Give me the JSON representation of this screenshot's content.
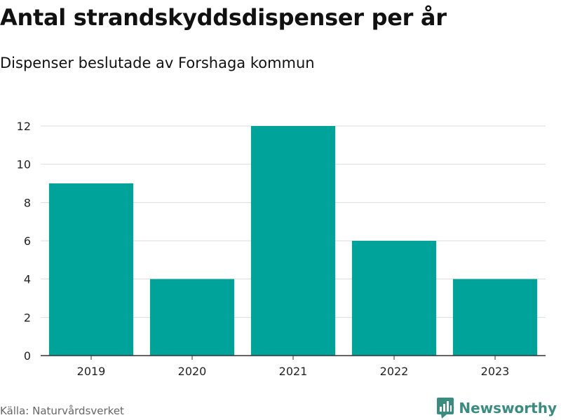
{
  "header": {
    "title": "Antal strandskyddsdispenser per år",
    "subtitle": "Dispenser beslutade av Forshaga kommun"
  },
  "footer": {
    "source": "Källa: Naturvårdsverket",
    "brand": "Newsworthy"
  },
  "colors": {
    "bar": "#00a399",
    "grid": "#dddddd",
    "axis": "#333333",
    "brand": "#3a8c80"
  },
  "chart_data": {
    "type": "bar",
    "title": "Antal strandskyddsdispenser per år",
    "subtitle": "Dispenser beslutade av Forshaga kommun",
    "categories": [
      "2019",
      "2020",
      "2021",
      "2022",
      "2023"
    ],
    "values": [
      9,
      4,
      12,
      6,
      4
    ],
    "xlabel": "",
    "ylabel": "",
    "ylim": [
      0,
      12
    ],
    "yticks": [
      0,
      2,
      4,
      6,
      8,
      10,
      12
    ],
    "grid": true
  }
}
